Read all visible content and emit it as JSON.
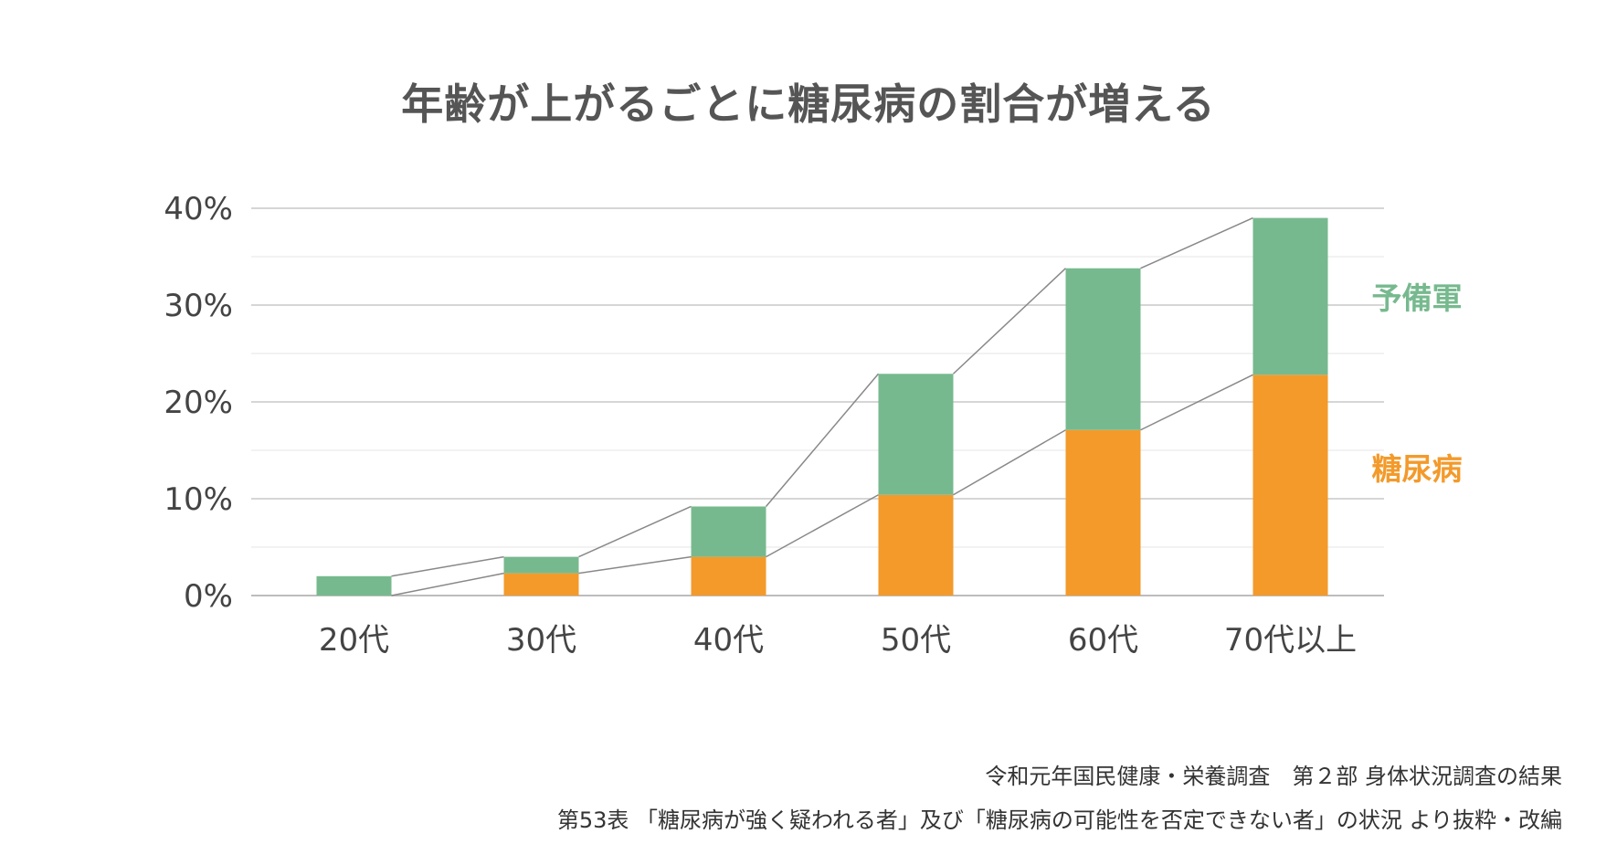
{
  "title": "年齢が上がるごとに糖尿病の割合が増える",
  "chart_data": {
    "type": "bar",
    "stacked": true,
    "categories": [
      "20代",
      "30代",
      "40代",
      "50代",
      "60代",
      "70代以上"
    ],
    "series": [
      {
        "name": "糖尿病",
        "color": "#F39A2B",
        "values": [
          0,
          2.3,
          4.0,
          10.4,
          17.1,
          22.8
        ]
      },
      {
        "name": "予備軍",
        "color": "#77B98E",
        "values": [
          2.0,
          1.7,
          5.2,
          12.5,
          16.7,
          16.2
        ]
      }
    ],
    "ylim": [
      0,
      40
    ],
    "yticks": [
      0,
      10,
      20,
      30,
      40
    ],
    "ytick_labels": [
      "0%",
      "10%",
      "20%",
      "30%",
      "40%"
    ],
    "grid": true,
    "minor_grid": true,
    "connector_lines": true,
    "legend": "right, inline labels"
  },
  "source": {
    "line1": "令和元年国民健康・栄養調査　第２部 身体状況調査の結果",
    "line2": "第53表 「糖尿病が強く疑われる者」及び「糖尿病の可能性を否定できない者」の状況 より抜粋・改編"
  }
}
